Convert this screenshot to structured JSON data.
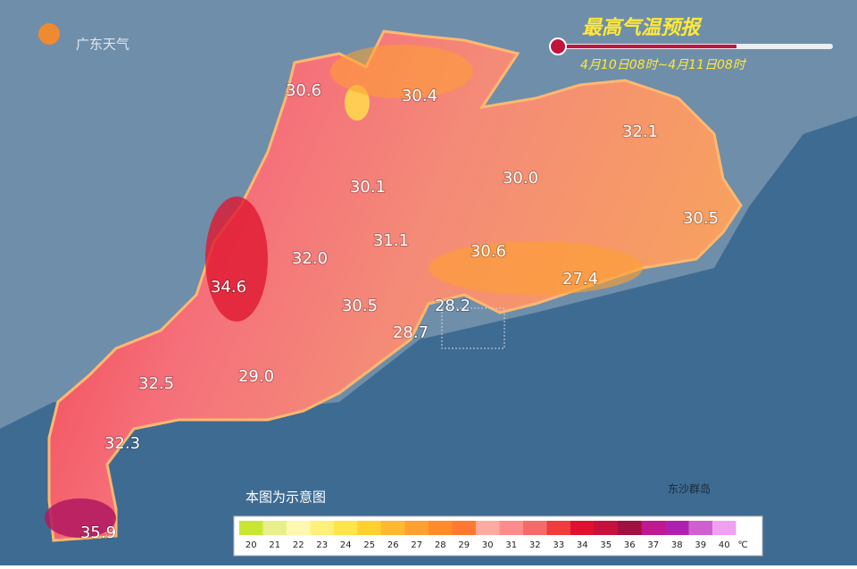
{
  "header": {
    "logo": "广东天气",
    "title": "最高气温预报",
    "period": "4月10日08时~4月11日08时"
  },
  "labels": [
    "30.6",
    "30.4",
    "32.1",
    "30.1",
    "30.0",
    "30.5",
    "31.1",
    "30.6",
    "32.0",
    "34.6",
    "27.4",
    "28.2",
    "30.5",
    "28.7",
    "32.5",
    "29.0",
    "32.3",
    "35.9"
  ],
  "place": "东沙群岛",
  "note": "本图为示意图",
  "legend": {
    "items": [
      {
        "label": "20",
        "color": "#c8e632"
      },
      {
        "label": "21",
        "color": "#e8f08c"
      },
      {
        "label": "22",
        "color": "#fff8b0"
      },
      {
        "label": "23",
        "color": "#fff07a"
      },
      {
        "label": "24",
        "color": "#ffe44a"
      },
      {
        "label": "25",
        "color": "#ffd030"
      },
      {
        "label": "26",
        "color": "#ffb830"
      },
      {
        "label": "27",
        "color": "#ffa030"
      },
      {
        "label": "28",
        "color": "#ff8c28"
      },
      {
        "label": "29",
        "color": "#ff7a30"
      },
      {
        "label": "30",
        "color": "#ffaaa0"
      },
      {
        "label": "31",
        "color": "#ff8c8c"
      },
      {
        "label": "32",
        "color": "#f76a6a"
      },
      {
        "label": "33",
        "color": "#f03c3c"
      },
      {
        "label": "34",
        "color": "#e01030"
      },
      {
        "label": "35",
        "color": "#c8103c"
      },
      {
        "label": "36",
        "color": "#a01040"
      },
      {
        "label": "37",
        "color": "#c01890"
      },
      {
        "label": "38",
        "color": "#b020b0"
      },
      {
        "label": "39",
        "color": "#d060d0"
      },
      {
        "label": "40",
        "color": "#f0a0f0"
      }
    ],
    "unit": "℃"
  }
}
